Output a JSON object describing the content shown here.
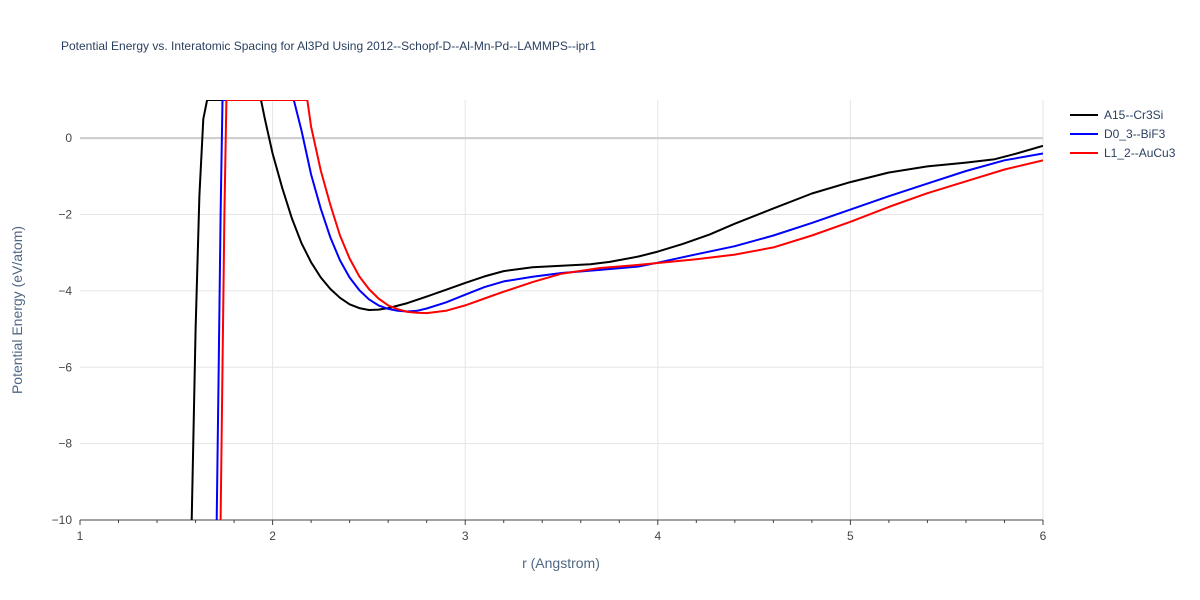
{
  "chart_data": {
    "type": "line",
    "title": "Potential Energy vs. Interatomic Spacing for Al3Pd Using 2012--Schopf-D--Al-Mn-Pd--LAMMPS--ipr1",
    "xlabel": "r (Angstrom)",
    "ylabel": "Potential Energy (eV/atom)",
    "xlim": [
      1,
      6
    ],
    "ylim": [
      -10,
      1
    ],
    "xticks": [
      1,
      2,
      3,
      4,
      5,
      6
    ],
    "xtick_labels": [
      "1",
      "2",
      "3",
      "4",
      "5",
      "6"
    ],
    "yticks": [
      -10,
      -8,
      -6,
      -4,
      -2,
      0
    ],
    "ytick_labels": [
      "−10",
      "−8",
      "−6",
      "−4",
      "−2",
      "0"
    ],
    "grid": true,
    "legend_position": "top-right",
    "series": [
      {
        "name": "A15--Cr3Si",
        "color": "#000000",
        "x": [
          1.58,
          1.6,
          1.62,
          1.64,
          1.66,
          1.94,
          1.96,
          2.0,
          2.05,
          2.1,
          2.15,
          2.2,
          2.25,
          2.3,
          2.35,
          2.4,
          2.45,
          2.5,
          2.55,
          2.6,
          2.7,
          2.8,
          2.9,
          3.0,
          3.1,
          3.2,
          3.35,
          3.5,
          3.65,
          3.75,
          3.9,
          4.0,
          4.13,
          4.27,
          4.4,
          4.6,
          4.8,
          5.0,
          5.2,
          5.4,
          5.6,
          5.75,
          5.85,
          6.0
        ],
        "y": [
          -10.0,
          -5.0,
          -1.5,
          0.5,
          1.0,
          1.0,
          0.5,
          -0.4,
          -1.3,
          -2.1,
          -2.75,
          -3.25,
          -3.65,
          -3.95,
          -4.18,
          -4.35,
          -4.45,
          -4.5,
          -4.49,
          -4.45,
          -4.32,
          -4.15,
          -3.97,
          -3.79,
          -3.62,
          -3.48,
          -3.38,
          -3.34,
          -3.3,
          -3.24,
          -3.1,
          -2.97,
          -2.77,
          -2.52,
          -2.24,
          -1.84,
          -1.45,
          -1.15,
          -0.9,
          -0.74,
          -0.64,
          -0.55,
          -0.42,
          -0.2
        ]
      },
      {
        "name": "D0_3--BiF3",
        "color": "#0000ff",
        "x": [
          1.71,
          1.72,
          1.73,
          1.74,
          2.11,
          2.15,
          2.2,
          2.25,
          2.3,
          2.35,
          2.4,
          2.45,
          2.5,
          2.55,
          2.6,
          2.65,
          2.7,
          2.75,
          2.8,
          2.9,
          3.0,
          3.1,
          3.2,
          3.35,
          3.5,
          3.7,
          3.9,
          4.0,
          4.2,
          4.4,
          4.6,
          4.8,
          5.0,
          5.2,
          5.4,
          5.6,
          5.8,
          6.0
        ],
        "y": [
          -10.0,
          -6.0,
          -2.0,
          1.0,
          1.0,
          0.2,
          -0.95,
          -1.85,
          -2.6,
          -3.2,
          -3.65,
          -3.98,
          -4.22,
          -4.38,
          -4.47,
          -4.52,
          -4.54,
          -4.52,
          -4.46,
          -4.3,
          -4.1,
          -3.9,
          -3.75,
          -3.63,
          -3.53,
          -3.45,
          -3.36,
          -3.26,
          -3.04,
          -2.83,
          -2.55,
          -2.22,
          -1.87,
          -1.52,
          -1.19,
          -0.86,
          -0.58,
          -0.4
        ]
      },
      {
        "name": "L1_2--AuCu3",
        "color": "#ff0000",
        "x": [
          1.73,
          1.74,
          1.75,
          1.76,
          2.18,
          2.2,
          2.25,
          2.3,
          2.35,
          2.4,
          2.45,
          2.5,
          2.55,
          2.6,
          2.65,
          2.7,
          2.75,
          2.8,
          2.9,
          3.0,
          3.1,
          3.2,
          3.35,
          3.5,
          3.7,
          3.9,
          4.0,
          4.2,
          4.4,
          4.6,
          4.8,
          5.0,
          5.2,
          5.4,
          5.6,
          5.8,
          6.0
        ],
        "y": [
          -10.0,
          -6.0,
          -2.0,
          1.0,
          1.0,
          0.3,
          -0.85,
          -1.75,
          -2.55,
          -3.15,
          -3.62,
          -3.95,
          -4.2,
          -4.38,
          -4.48,
          -4.55,
          -4.57,
          -4.58,
          -4.52,
          -4.38,
          -4.2,
          -4.02,
          -3.77,
          -3.55,
          -3.4,
          -3.32,
          -3.27,
          -3.17,
          -3.05,
          -2.86,
          -2.55,
          -2.19,
          -1.8,
          -1.44,
          -1.13,
          -0.82,
          -0.58
        ]
      }
    ]
  }
}
